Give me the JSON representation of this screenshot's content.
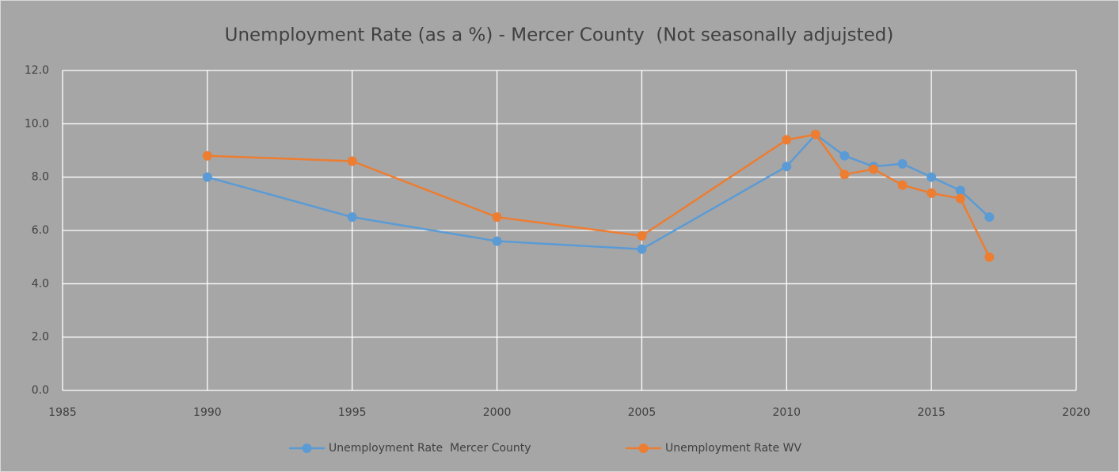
{
  "chart_data": {
    "type": "line",
    "title": "Unemployment Rate (as a %) - Mercer County  (Not seasonally adjujsted)",
    "x": [
      1990,
      1995,
      2000,
      2005,
      2010,
      2011,
      2012,
      2013,
      2014,
      2015,
      2016,
      2017
    ],
    "series": [
      {
        "name": "Unemployment Rate  Mercer County",
        "color": "#5b9bd5",
        "values": [
          8.0,
          6.5,
          5.6,
          5.3,
          8.4,
          9.6,
          8.8,
          8.4,
          8.5,
          8.0,
          7.5,
          6.5
        ]
      },
      {
        "name": "Unemployment Rate WV",
        "color": "#ed7d31",
        "values": [
          8.8,
          8.6,
          6.5,
          5.8,
          9.4,
          9.6,
          8.1,
          8.3,
          7.7,
          7.4,
          7.2,
          5.0
        ]
      }
    ],
    "xlim": [
      1985,
      2020
    ],
    "xticks": [
      1985,
      1990,
      1995,
      2000,
      2005,
      2010,
      2015,
      2020
    ],
    "ylim": [
      0,
      12
    ],
    "yticks": [
      {
        "value": 0,
        "label": "0.0"
      },
      {
        "value": 2,
        "label": "2.0"
      },
      {
        "value": 4,
        "label": "4.0"
      },
      {
        "value": 6,
        "label": "6.0"
      },
      {
        "value": 8,
        "label": "8.0"
      },
      {
        "value": 10,
        "label": "10.0"
      },
      {
        "value": 12,
        "label": "12.0"
      }
    ],
    "grid": true,
    "legend": "bottom"
  }
}
